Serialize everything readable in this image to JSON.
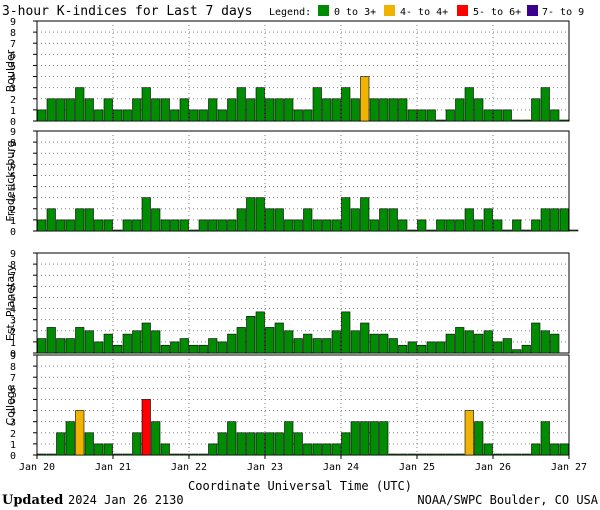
{
  "colors": {
    "quiet": "#008c00",
    "active": "#f0b400",
    "storm": "#ff0000",
    "severe": "#3c008c",
    "bar_outline": "#000000",
    "grid": "#808080"
  },
  "chart_data": {
    "type": "bar",
    "title": "3-hour K-indices for Last 7 days",
    "legend": {
      "title": "Legend:",
      "placement": "top-right",
      "items": [
        {
          "label": "0 to 3+",
          "color": "#008c00"
        },
        {
          "label": "4- to 4+",
          "color": "#f0b400"
        },
        {
          "label": "5- to 6+",
          "color": "#ff0000"
        },
        {
          "label": "7- to 9",
          "color": "#3c008c"
        }
      ]
    },
    "xlabel": "Coordinate Universal Time (UTC)",
    "x_ticks": [
      "Jan 20",
      "Jan 21",
      "Jan 22",
      "Jan 23",
      "Jan 24",
      "Jan 25",
      "Jan 26",
      "Jan 27"
    ],
    "ylim": [
      0,
      9
    ],
    "y_ticks": [
      "0",
      "1",
      "2",
      "3",
      "4",
      "5",
      "6",
      "7",
      "8",
      "9"
    ],
    "grid": true,
    "bins_per_day": 8,
    "panels": [
      {
        "name": "Boulder",
        "values": [
          1,
          2,
          2,
          2,
          3,
          2,
          1,
          2,
          1,
          1,
          2,
          3,
          2,
          2,
          1,
          2,
          1,
          1,
          2,
          1,
          2,
          3,
          2,
          3,
          2,
          2,
          2,
          1,
          1,
          3,
          2,
          2,
          3,
          2,
          4,
          2,
          2,
          2,
          2,
          1,
          1,
          1,
          0,
          1,
          2,
          3,
          2,
          1,
          1,
          1,
          0,
          0,
          2,
          3,
          1,
          0
        ]
      },
      {
        "name": "Fredericksburg",
        "values": [
          1,
          2,
          1,
          1,
          2,
          2,
          1,
          1,
          0,
          1,
          1,
          3,
          2,
          1,
          1,
          1,
          0,
          1,
          1,
          1,
          1,
          2,
          3,
          3,
          2,
          2,
          1,
          1,
          2,
          1,
          1,
          1,
          3,
          2,
          3,
          1,
          2,
          2,
          1,
          0,
          1,
          0,
          1,
          1,
          1,
          2,
          1,
          2,
          1,
          0,
          1,
          0,
          1,
          2,
          2,
          2,
          0
        ]
      },
      {
        "name": "Est. Planetary",
        "values": [
          1.3,
          2.3,
          1.3,
          1.3,
          2.3,
          2.0,
          1.0,
          1.7,
          0.7,
          1.7,
          2.0,
          2.7,
          2.0,
          0.7,
          1.0,
          1.3,
          0.7,
          0.7,
          1.3,
          1.0,
          1.7,
          2.3,
          3.3,
          3.7,
          2.3,
          2.7,
          2.0,
          1.3,
          1.7,
          1.3,
          1.3,
          2.0,
          3.7,
          2.0,
          2.7,
          1.7,
          1.7,
          1.3,
          0.7,
          1.0,
          0.7,
          1.0,
          1.0,
          1.7,
          2.3,
          2.0,
          1.7,
          2.0,
          1.0,
          1.3,
          0.3,
          0.7,
          2.7,
          2.0,
          1.7
        ]
      },
      {
        "name": "College",
        "values": [
          0,
          0,
          2,
          3,
          4,
          2,
          1,
          1,
          0,
          0,
          2,
          5,
          3,
          1,
          0,
          0,
          0,
          0,
          1,
          2,
          3,
          2,
          2,
          2,
          2,
          2,
          3,
          2,
          1,
          1,
          1,
          1,
          2,
          3,
          3,
          3,
          3,
          0,
          0,
          0,
          0,
          0,
          0,
          0,
          0,
          4,
          3,
          1,
          0,
          0,
          0,
          0,
          1,
          3,
          1,
          1
        ]
      }
    ]
  },
  "footer": {
    "updated_label": "Updated",
    "updated_value": "2024 Jan 26 2130",
    "credit": "NOAA/SWPC Boulder, CO USA"
  }
}
